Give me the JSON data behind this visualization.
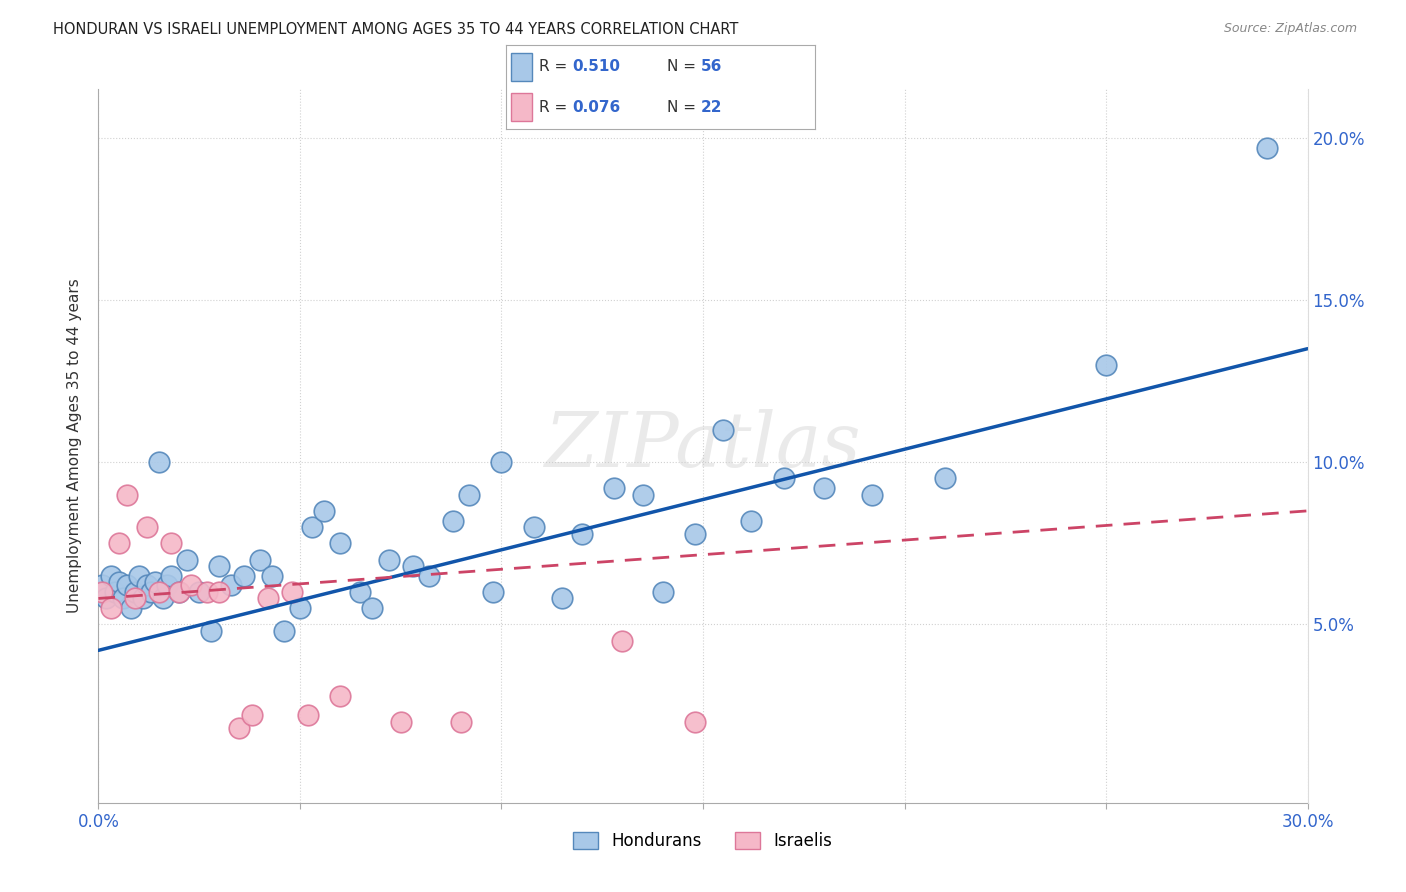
{
  "title": "HONDURAN VS ISRAELI UNEMPLOYMENT AMONG AGES 35 TO 44 YEARS CORRELATION CHART",
  "source": "Source: ZipAtlas.com",
  "ylabel": "Unemployment Among Ages 35 to 44 years",
  "xlim": [
    0.0,
    0.3
  ],
  "ylim": [
    -0.005,
    0.215
  ],
  "xticks": [
    0.0,
    0.05,
    0.1,
    0.15,
    0.2,
    0.25,
    0.3
  ],
  "xtick_labels": [
    "0.0%",
    "",
    "",
    "",
    "",
    "",
    "30.0%"
  ],
  "yticks": [
    0.05,
    0.1,
    0.15,
    0.2
  ],
  "right_ytick_labels": [
    "5.0%",
    "10.0%",
    "15.0%",
    "20.0%"
  ],
  "honduran_color": "#a8c8e8",
  "honduran_edge_color": "#5588bb",
  "israeli_color": "#f5b8c8",
  "israeli_edge_color": "#dd7799",
  "honduran_R": 0.51,
  "honduran_N": 56,
  "israeli_R": 0.076,
  "israeli_N": 22,
  "trend_blue": "#1155aa",
  "trend_pink": "#cc4466",
  "watermark": "ZIPatlas",
  "hon_trend_x0": 0.0,
  "hon_trend_y0": 0.042,
  "hon_trend_x1": 0.3,
  "hon_trend_y1": 0.135,
  "isr_trend_x0": 0.0,
  "isr_trend_y0": 0.058,
  "isr_trend_x1": 0.3,
  "isr_trend_y1": 0.085,
  "honduran_x": [
    0.001,
    0.002,
    0.003,
    0.004,
    0.005,
    0.006,
    0.007,
    0.008,
    0.009,
    0.01,
    0.011,
    0.012,
    0.013,
    0.014,
    0.015,
    0.016,
    0.017,
    0.018,
    0.02,
    0.022,
    0.025,
    0.028,
    0.03,
    0.033,
    0.036,
    0.04,
    0.043,
    0.046,
    0.05,
    0.053,
    0.056,
    0.06,
    0.065,
    0.068,
    0.072,
    0.078,
    0.082,
    0.088,
    0.092,
    0.098,
    0.1,
    0.108,
    0.115,
    0.12,
    0.128,
    0.135,
    0.14,
    0.148,
    0.155,
    0.162,
    0.17,
    0.18,
    0.192,
    0.21,
    0.25,
    0.29
  ],
  "honduran_y": [
    0.062,
    0.058,
    0.065,
    0.06,
    0.063,
    0.058,
    0.062,
    0.055,
    0.06,
    0.065,
    0.058,
    0.062,
    0.06,
    0.063,
    0.1,
    0.058,
    0.062,
    0.065,
    0.06,
    0.07,
    0.06,
    0.048,
    0.068,
    0.062,
    0.065,
    0.07,
    0.065,
    0.048,
    0.055,
    0.08,
    0.085,
    0.075,
    0.06,
    0.055,
    0.07,
    0.068,
    0.065,
    0.082,
    0.09,
    0.06,
    0.1,
    0.08,
    0.058,
    0.078,
    0.092,
    0.09,
    0.06,
    0.078,
    0.11,
    0.082,
    0.095,
    0.092,
    0.09,
    0.095,
    0.13,
    0.197
  ],
  "israeli_x": [
    0.001,
    0.003,
    0.005,
    0.007,
    0.009,
    0.012,
    0.015,
    0.018,
    0.02,
    0.023,
    0.027,
    0.03,
    0.035,
    0.038,
    0.042,
    0.048,
    0.052,
    0.06,
    0.075,
    0.09,
    0.13,
    0.148
  ],
  "israeli_y": [
    0.06,
    0.055,
    0.075,
    0.09,
    0.058,
    0.08,
    0.06,
    0.075,
    0.06,
    0.062,
    0.06,
    0.06,
    0.018,
    0.022,
    0.058,
    0.06,
    0.022,
    0.028,
    0.02,
    0.02,
    0.045,
    0.02
  ]
}
